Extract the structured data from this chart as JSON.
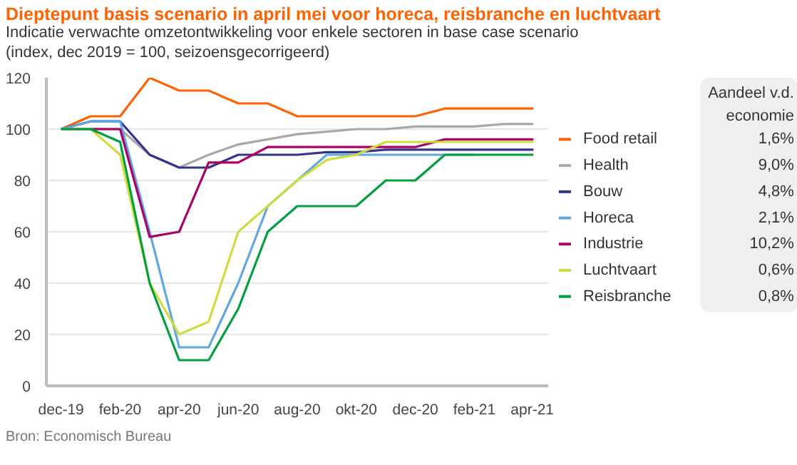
{
  "chart_data": {
    "type": "line",
    "title": "Dieptepunt basis scenario in april mei voor horeca, reisbranche en luchtvaart",
    "subtitle": "Indicatie verwachte omzetontwikkeling voor enkele sectoren in base case scenario\n(index, dec 2019 = 100, seizoensgecorrigeerd)",
    "categories": [
      "dec-19",
      null,
      "feb-20",
      null,
      "apr-20",
      null,
      "jun-20",
      null,
      "aug-20",
      null,
      "okt-20",
      null,
      "dec-20",
      null,
      "feb-21",
      null,
      "apr-21"
    ],
    "series": [
      {
        "name": "Food retail",
        "color": "#ff6200",
        "values": [
          100,
          105,
          105,
          120,
          115,
          115,
          110,
          110,
          105,
          105,
          105,
          105,
          105,
          108,
          108,
          108,
          108
        ]
      },
      {
        "name": "Health",
        "color": "#a8a8a8",
        "values": [
          100,
          100,
          100,
          90,
          85,
          90,
          94,
          96,
          98,
          99,
          100,
          100,
          101,
          101,
          101,
          102,
          102
        ]
      },
      {
        "name": "Bouw",
        "color": "#34348c",
        "values": [
          100,
          103,
          103,
          90,
          85,
          85,
          90,
          90,
          90,
          91,
          91,
          92,
          92,
          92,
          92,
          92,
          92
        ]
      },
      {
        "name": "Horeca",
        "color": "#60a8e0",
        "values": [
          100,
          103,
          103,
          60,
          15,
          15,
          40,
          70,
          80,
          90,
          90,
          90,
          90,
          90,
          90,
          null,
          null
        ]
      },
      {
        "name": "Industrie",
        "color": "#ab0066",
        "values": [
          100,
          100,
          100,
          58,
          60,
          87,
          87,
          93,
          93,
          93,
          93,
          93,
          93,
          96,
          96,
          96,
          96
        ]
      },
      {
        "name": "Luchtvaart",
        "color": "#d0dc3c",
        "values": [
          100,
          100,
          90,
          40,
          20,
          25,
          60,
          70,
          80,
          88,
          90,
          95,
          95,
          95,
          95,
          95,
          95
        ]
      },
      {
        "name": "Reisbranche",
        "color": "#00a040",
        "values": [
          100,
          100,
          95,
          40,
          10,
          10,
          30,
          60,
          70,
          70,
          70,
          80,
          80,
          90,
          90,
          90,
          90
        ]
      }
    ],
    "ylim": [
      0,
      120
    ],
    "yticks": [
      0,
      20,
      40,
      60,
      80,
      100,
      120
    ],
    "grid": "y",
    "legend": "right",
    "marker": "none",
    "line_style": "solid",
    "legend_title": "Aandeel v.d.\neconomie",
    "annotations": [
      "1,6%",
      "9,0%",
      "4,8%",
      "2,1%",
      "10,2%",
      "0,6%",
      "0,8%",
      "Bron: Economisch Bureau"
    ]
  }
}
